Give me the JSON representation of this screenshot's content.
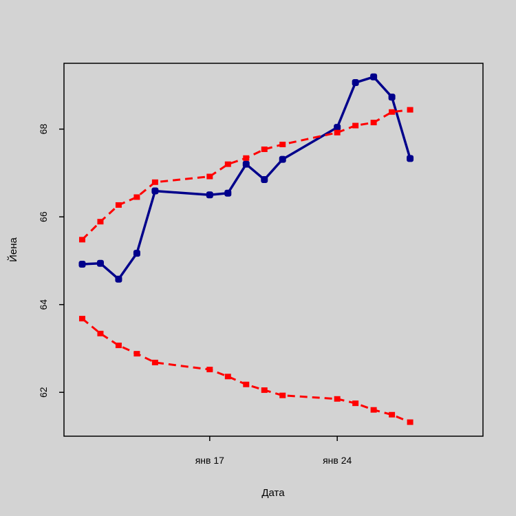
{
  "chart_data": {
    "type": "line",
    "xlabel": "Дата",
    "ylabel": "Йена",
    "x_tick_labels": [
      {
        "date": "2020-01-17",
        "label": "янв 17"
      },
      {
        "date": "2020-01-24",
        "label": "янв 24"
      }
    ],
    "y_ticks": [
      62,
      64,
      66,
      68
    ],
    "xlim": [
      "2020-01-09",
      "2020-02-01"
    ],
    "ylim": [
      61.0,
      69.5
    ],
    "grid": false,
    "legend": "none",
    "x": [
      "2020-01-10",
      "2020-01-11",
      "2020-01-12",
      "2020-01-13",
      "2020-01-14",
      "2020-01-17",
      "2020-01-18",
      "2020-01-19",
      "2020-01-20",
      "2020-01-21",
      "2020-01-24",
      "2020-01-25",
      "2020-01-26",
      "2020-01-27",
      "2020-01-28"
    ],
    "series": [
      {
        "values": [
          64.92,
          64.94,
          64.58,
          65.17,
          66.59,
          66.5,
          66.54,
          67.2,
          66.85,
          67.31,
          68.04,
          69.06,
          69.19,
          68.73,
          67.33
        ],
        "color": "#00008b",
        "style": "solid",
        "marker": "circle"
      },
      {
        "values": [
          65.48,
          65.89,
          66.27,
          66.45,
          66.79,
          66.92,
          67.2,
          67.34,
          67.54,
          67.65,
          67.92,
          68.08,
          68.15,
          68.39,
          68.44
        ],
        "color": "#ff0000",
        "style": "dashed",
        "marker": "square"
      },
      {
        "values": [
          63.68,
          63.34,
          63.07,
          62.88,
          62.68,
          62.52,
          62.36,
          62.18,
          62.05,
          61.93,
          61.85,
          61.75,
          61.6,
          61.49,
          61.32
        ],
        "color": "#ff0000",
        "style": "dashed",
        "marker": "square"
      }
    ]
  }
}
